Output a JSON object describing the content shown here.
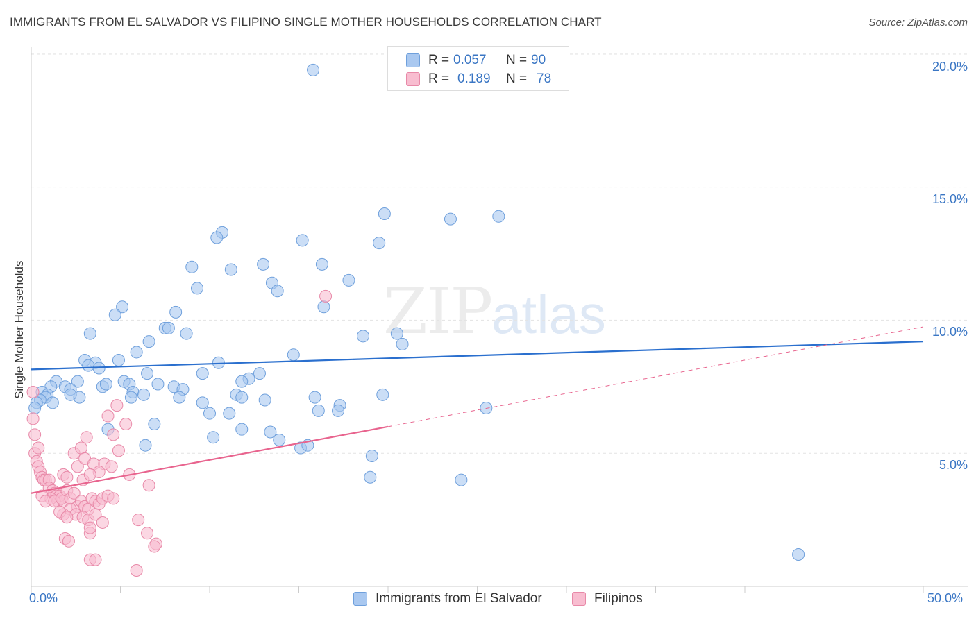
{
  "header": {
    "title": "IMMIGRANTS FROM EL SALVADOR VS FILIPINO SINGLE MOTHER HOUSEHOLDS CORRELATION CHART",
    "source": "Source: ZipAtlas.com"
  },
  "watermark": {
    "zip": "ZIP",
    "atlas": "atlas"
  },
  "legend": {
    "rows": [
      {
        "r_label": "R =",
        "r_value": "0.057",
        "n_label": "N =",
        "n_value": "90",
        "color": "#a9c8f0",
        "border": "#6fa0dc"
      },
      {
        "r_label": "R =",
        "r_value": "0.189",
        "n_label": "N =",
        "n_value": "78",
        "color": "#f8bdd0",
        "border": "#e889a8"
      }
    ]
  },
  "axes": {
    "ylabel": "Single Mother Households",
    "y_ticks": [
      "20.0%",
      "15.0%",
      "10.0%",
      "5.0%"
    ],
    "x_ticks": [
      "0.0%",
      "50.0%"
    ]
  },
  "colors": {
    "blue_fill": "#a9c8f0",
    "blue_stroke": "#6fa0dc",
    "blue_line": "#2a6fce",
    "pink_fill": "#f8bdd0",
    "pink_stroke": "#e889a8",
    "pink_line": "#e8648e",
    "grid": "#e3e3e3",
    "axis": "#cccccc",
    "tick_text": "#3a76c4"
  },
  "chart_data": {
    "type": "scatter",
    "xlim": [
      0,
      50
    ],
    "ylim": [
      0,
      20.8
    ],
    "grid": true,
    "legend_position": "top-center",
    "series": [
      {
        "name": "Immigrants from El Salvador",
        "points": [
          [
            15.8,
            19.4
          ],
          [
            19.8,
            14.0
          ],
          [
            23.5,
            13.8
          ],
          [
            26.2,
            13.9
          ],
          [
            10.7,
            13.3
          ],
          [
            10.4,
            13.1
          ],
          [
            15.2,
            13.0
          ],
          [
            19.5,
            12.9
          ],
          [
            9.0,
            12.0
          ],
          [
            11.2,
            11.9
          ],
          [
            13.0,
            12.1
          ],
          [
            16.3,
            12.1
          ],
          [
            17.8,
            11.5
          ],
          [
            13.5,
            11.4
          ],
          [
            9.3,
            11.2
          ],
          [
            13.8,
            11.1
          ],
          [
            5.1,
            10.5
          ],
          [
            16.4,
            10.5
          ],
          [
            4.7,
            10.2
          ],
          [
            8.1,
            10.3
          ],
          [
            7.5,
            9.7
          ],
          [
            7.7,
            9.7
          ],
          [
            3.3,
            9.5
          ],
          [
            8.7,
            9.5
          ],
          [
            6.6,
            9.2
          ],
          [
            18.6,
            9.4
          ],
          [
            20.5,
            9.5
          ],
          [
            20.8,
            9.1
          ],
          [
            5.9,
            8.8
          ],
          [
            14.7,
            8.7
          ],
          [
            3.0,
            8.5
          ],
          [
            3.6,
            8.4
          ],
          [
            4.9,
            8.5
          ],
          [
            10.5,
            8.4
          ],
          [
            3.2,
            8.3
          ],
          [
            3.8,
            8.2
          ],
          [
            6.5,
            8.0
          ],
          [
            9.6,
            8.0
          ],
          [
            12.8,
            8.0
          ],
          [
            12.2,
            7.8
          ],
          [
            11.8,
            7.7
          ],
          [
            5.2,
            7.7
          ],
          [
            5.5,
            7.6
          ],
          [
            7.1,
            7.6
          ],
          [
            8.0,
            7.5
          ],
          [
            2.6,
            7.7
          ],
          [
            1.4,
            7.7
          ],
          [
            1.1,
            7.5
          ],
          [
            0.6,
            7.3
          ],
          [
            0.9,
            7.2
          ],
          [
            1.9,
            7.5
          ],
          [
            2.2,
            7.4
          ],
          [
            4.0,
            7.5
          ],
          [
            4.2,
            7.6
          ],
          [
            8.5,
            7.4
          ],
          [
            2.7,
            7.1
          ],
          [
            2.2,
            7.2
          ],
          [
            0.8,
            7.1
          ],
          [
            0.5,
            7.0
          ],
          [
            0.3,
            6.9
          ],
          [
            0.2,
            6.7
          ],
          [
            1.2,
            6.9
          ],
          [
            5.7,
            7.3
          ],
          [
            6.3,
            7.2
          ],
          [
            8.3,
            7.1
          ],
          [
            9.6,
            6.9
          ],
          [
            11.5,
            7.2
          ],
          [
            11.8,
            7.1
          ],
          [
            13.1,
            7.0
          ],
          [
            15.9,
            7.1
          ],
          [
            17.3,
            6.8
          ],
          [
            19.7,
            7.2
          ],
          [
            5.6,
            7.1
          ],
          [
            10.0,
            6.5
          ],
          [
            11.1,
            6.5
          ],
          [
            16.1,
            6.6
          ],
          [
            17.2,
            6.6
          ],
          [
            25.5,
            6.7
          ],
          [
            6.9,
            6.1
          ],
          [
            4.3,
            5.9
          ],
          [
            11.8,
            5.9
          ],
          [
            13.4,
            5.8
          ],
          [
            10.2,
            5.6
          ],
          [
            13.9,
            5.5
          ],
          [
            6.4,
            5.3
          ],
          [
            15.1,
            5.2
          ],
          [
            15.5,
            5.3
          ],
          [
            19.1,
            4.9
          ],
          [
            19.0,
            4.1
          ],
          [
            24.1,
            4.0
          ],
          [
            43.0,
            1.2
          ]
        ]
      },
      {
        "name": "Filipinos",
        "points": [
          [
            16.5,
            10.9
          ],
          [
            0.1,
            7.3
          ],
          [
            0.1,
            6.3
          ],
          [
            0.2,
            5.7
          ],
          [
            0.2,
            5.0
          ],
          [
            0.3,
            4.7
          ],
          [
            0.4,
            4.5
          ],
          [
            0.5,
            4.3
          ],
          [
            0.6,
            4.1
          ],
          [
            0.7,
            4.0
          ],
          [
            0.8,
            4.0
          ],
          [
            1.0,
            4.0
          ],
          [
            1.0,
            3.7
          ],
          [
            1.2,
            3.6
          ],
          [
            1.3,
            3.5
          ],
          [
            1.4,
            3.4
          ],
          [
            1.5,
            3.2
          ],
          [
            1.6,
            3.4
          ],
          [
            1.8,
            3.2
          ],
          [
            1.1,
            3.3
          ],
          [
            0.6,
            3.4
          ],
          [
            0.8,
            3.2
          ],
          [
            1.3,
            3.2
          ],
          [
            1.7,
            3.3
          ],
          [
            2.0,
            3.6
          ],
          [
            2.2,
            3.3
          ],
          [
            2.4,
            3.5
          ],
          [
            2.6,
            3.0
          ],
          [
            2.8,
            3.2
          ],
          [
            3.0,
            3.0
          ],
          [
            3.2,
            2.9
          ],
          [
            3.4,
            3.3
          ],
          [
            3.6,
            3.2
          ],
          [
            3.8,
            3.1
          ],
          [
            4.0,
            3.3
          ],
          [
            4.3,
            3.4
          ],
          [
            4.6,
            3.3
          ],
          [
            2.2,
            2.9
          ],
          [
            2.5,
            2.7
          ],
          [
            2.9,
            2.6
          ],
          [
            3.2,
            2.5
          ],
          [
            3.6,
            2.7
          ],
          [
            1.8,
            2.7
          ],
          [
            1.6,
            2.8
          ],
          [
            2.0,
            2.6
          ],
          [
            2.4,
            5.0
          ],
          [
            2.8,
            5.2
          ],
          [
            3.1,
            5.6
          ],
          [
            2.6,
            4.5
          ],
          [
            3.0,
            4.8
          ],
          [
            3.5,
            4.6
          ],
          [
            4.1,
            4.6
          ],
          [
            3.8,
            4.3
          ],
          [
            4.5,
            4.5
          ],
          [
            4.9,
            5.1
          ],
          [
            5.5,
            4.2
          ],
          [
            2.9,
            4.0
          ],
          [
            3.3,
            4.2
          ],
          [
            1.8,
            4.2
          ],
          [
            4.0,
            2.4
          ],
          [
            3.3,
            2.0
          ],
          [
            3.3,
            2.2
          ],
          [
            1.9,
            1.8
          ],
          [
            2.1,
            1.7
          ],
          [
            6.0,
            2.5
          ],
          [
            6.5,
            2.0
          ],
          [
            7.0,
            1.6
          ],
          [
            3.3,
            1.0
          ],
          [
            3.6,
            1.0
          ],
          [
            5.9,
            0.6
          ],
          [
            4.8,
            6.8
          ],
          [
            4.3,
            6.4
          ],
          [
            5.3,
            6.1
          ],
          [
            4.6,
            5.7
          ],
          [
            6.6,
            3.8
          ],
          [
            6.9,
            1.5
          ],
          [
            2.0,
            4.1
          ],
          [
            0.4,
            5.2
          ]
        ]
      }
    ],
    "trendlines": [
      {
        "series": "Immigrants from El Salvador",
        "from": [
          0,
          8.15
        ],
        "to": [
          50,
          9.2
        ],
        "style": "solid"
      },
      {
        "series": "Filipinos",
        "from": [
          0,
          3.5
        ],
        "to": [
          20,
          6.0
        ],
        "style": "solid"
      },
      {
        "series": "Filipinos",
        "from": [
          20,
          6.0
        ],
        "to": [
          50,
          9.75
        ],
        "style": "dashed"
      }
    ]
  }
}
